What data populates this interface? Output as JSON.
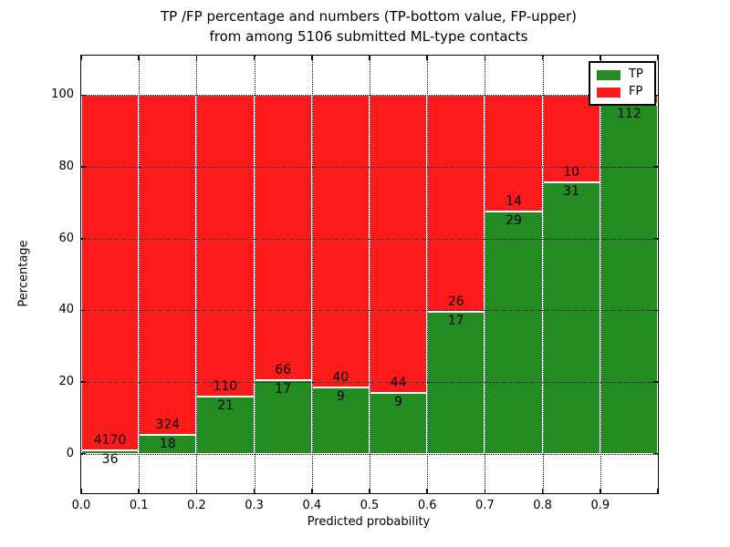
{
  "title": {
    "line1": "TP /FP percentage and numbers (TP-bottom value, FP-upper)",
    "line2": "from among 5106 submitted ML-type contacts"
  },
  "axes": {
    "xlabel": "Predicted probability",
    "ylabel": "Percentage",
    "xtick_labels": [
      "0.0",
      "0.1",
      "0.2",
      "0.3",
      "0.4",
      "0.5",
      "0.6",
      "0.7",
      "0.8",
      "0.9"
    ],
    "ytick_labels": [
      "0",
      "20",
      "40",
      "60",
      "80",
      "100"
    ],
    "ytick_values": [
      0,
      20,
      40,
      60,
      80,
      100
    ]
  },
  "legend": {
    "items": [
      {
        "label": "TP",
        "color": "#228b22"
      },
      {
        "label": "FP",
        "color": "#fc1a1a"
      }
    ]
  },
  "colors": {
    "tp": "#228b22",
    "fp": "#fc1a1a",
    "grid": "#000000",
    "axis": "#000000",
    "background": "#ffffff",
    "text": "#000000"
  },
  "chart_data": {
    "type": "bar",
    "stacked": true,
    "normalized": "each bin TP+FP scaled to 100%",
    "title": "TP /FP percentage and numbers (TP-bottom value, FP-upper) from among 5106 submitted ML-type contacts",
    "xlabel": "Predicted probability",
    "ylabel": "Percentage",
    "bins": [
      "0.0-0.1",
      "0.1-0.2",
      "0.2-0.3",
      "0.3-0.4",
      "0.4-0.5",
      "0.5-0.6",
      "0.6-0.7",
      "0.7-0.8",
      "0.8-0.9",
      "0.9-1.0"
    ],
    "series": [
      {
        "name": "TP",
        "counts": [
          36,
          18,
          21,
          17,
          9,
          9,
          17,
          29,
          31,
          112
        ],
        "percent": [
          0.86,
          5.26,
          16.03,
          20.48,
          18.37,
          16.98,
          39.53,
          67.44,
          75.61,
          97.4
        ]
      },
      {
        "name": "FP",
        "counts": [
          4170,
          324,
          110,
          66,
          40,
          44,
          26,
          14,
          10,
          null
        ],
        "percent": [
          99.14,
          94.74,
          83.97,
          79.52,
          81.63,
          83.02,
          60.47,
          32.56,
          24.39,
          2.6
        ]
      }
    ],
    "bar_count_labels": {
      "tp": [
        "36",
        "18",
        "21",
        "17",
        "9",
        "9",
        "17",
        "29",
        "31",
        "112"
      ],
      "fp": [
        "4170",
        "324",
        "110",
        "66",
        "40",
        "44",
        "26",
        "14",
        "10",
        ""
      ]
    },
    "xlim": [
      0.0,
      1.0
    ],
    "xticks": [
      0.0,
      0.1,
      0.2,
      0.3,
      0.4,
      0.5,
      0.6,
      0.7,
      0.8,
      0.9
    ],
    "yticks": [
      0,
      20,
      40,
      60,
      80,
      100
    ],
    "ylim_drawn": [
      -11,
      111
    ],
    "grid": "dotted black, both axes, drawn over bars",
    "legend_position": "upper right",
    "note_visible": "FP count label of last bin is hidden behind the legend"
  }
}
